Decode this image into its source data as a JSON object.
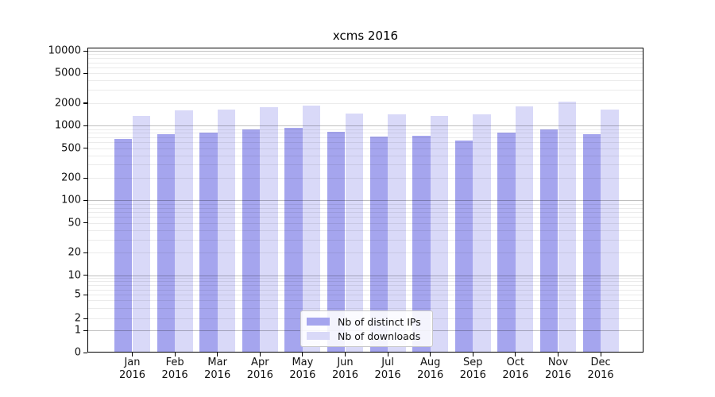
{
  "title": "xcms 2016",
  "chart_data": {
    "type": "bar",
    "title": "xcms 2016",
    "categories": [
      "Jan 2016",
      "Feb 2016",
      "Mar 2016",
      "Apr 2016",
      "May 2016",
      "Jun 2016",
      "Jul 2016",
      "Aug 2016",
      "Sep 2016",
      "Oct 2016",
      "Nov 2016",
      "Dec 2016"
    ],
    "months": [
      "Jan",
      "Feb",
      "Mar",
      "Apr",
      "May",
      "Jun",
      "Jul",
      "Aug",
      "Sep",
      "Oct",
      "Nov",
      "Dec"
    ],
    "year": "2016",
    "series": [
      {
        "name": "Nb of distinct IPs",
        "color": "#a5a5ee",
        "values": [
          660,
          760,
          815,
          885,
          945,
          825,
          720,
          740,
          630,
          815,
          900,
          760
        ]
      },
      {
        "name": "Nb of downloads",
        "color": "#d9d9f8",
        "values": [
          1360,
          1590,
          1650,
          1760,
          1840,
          1440,
          1400,
          1360,
          1400,
          1805,
          2100,
          1620
        ]
      }
    ],
    "xlabel": "",
    "ylabel": "",
    "yscale": "log-like (compressed to 0 at baseline)",
    "yticks": [
      10000,
      5000,
      2000,
      1000,
      500,
      200,
      100,
      50,
      20,
      10,
      5,
      2,
      1,
      0
    ],
    "ylim": [
      0,
      10000
    ],
    "grid": "on (major and minor horizontal gridlines)",
    "legend_position": "bottom-center inside plot"
  },
  "legend": {
    "items": [
      {
        "label": "Nb of distinct IPs"
      },
      {
        "label": "Nb of downloads"
      }
    ]
  },
  "colors": {
    "bar_distinct_ips": "#a5a5ee",
    "bar_downloads": "#d9d9f8",
    "grid_major": "rgba(0,0,0,0.25)",
    "grid_minor": "rgba(0,0,0,0.08)",
    "axis": "#000000",
    "background": "#ffffff",
    "legend_border": "#c9c9c9"
  }
}
